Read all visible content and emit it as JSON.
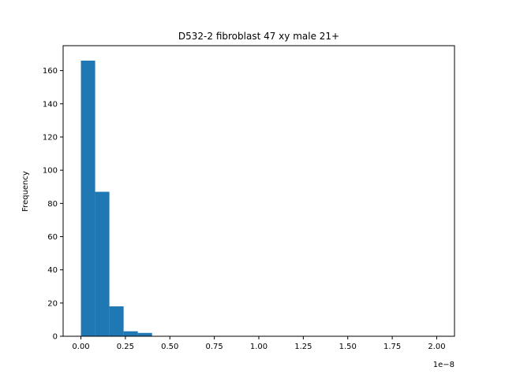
{
  "chart_data": {
    "type": "histogram",
    "title": "D532-2 fibroblast 47 xy male 21+",
    "xlabel": "",
    "ylabel": "Frequency",
    "x_offset_label": "1e−8",
    "xlim": [
      -0.1,
      2.1
    ],
    "ylim": [
      0,
      175
    ],
    "grid": false,
    "bar_color": "#1f77b4",
    "bin_width": 0.08,
    "bins": [
      {
        "x0": 0.0,
        "value": 166
      },
      {
        "x0": 0.08,
        "value": 87
      },
      {
        "x0": 0.16,
        "value": 18
      },
      {
        "x0": 0.24,
        "value": 3
      },
      {
        "x0": 0.32,
        "value": 2
      },
      {
        "x0": 0.4,
        "value": 0
      },
      {
        "x0": 0.48,
        "value": 0
      },
      {
        "x0": 0.56,
        "value": 0
      },
      {
        "x0": 0.64,
        "value": 0
      },
      {
        "x0": 0.72,
        "value": 0
      },
      {
        "x0": 0.8,
        "value": 0
      },
      {
        "x0": 0.88,
        "value": 0
      },
      {
        "x0": 0.96,
        "value": 0
      },
      {
        "x0": 1.04,
        "value": 0
      },
      {
        "x0": 1.12,
        "value": 0
      },
      {
        "x0": 1.2,
        "value": 0
      },
      {
        "x0": 1.28,
        "value": 0
      },
      {
        "x0": 1.36,
        "value": 0
      },
      {
        "x0": 1.44,
        "value": 0
      },
      {
        "x0": 1.52,
        "value": 0
      },
      {
        "x0": 1.6,
        "value": 0
      },
      {
        "x0": 1.68,
        "value": 0
      },
      {
        "x0": 1.76,
        "value": 0
      },
      {
        "x0": 1.84,
        "value": 0
      },
      {
        "x0": 1.92,
        "value": 0
      }
    ],
    "x_ticks": [
      {
        "value": 0.0,
        "label": "0.00"
      },
      {
        "value": 0.25,
        "label": "0.25"
      },
      {
        "value": 0.5,
        "label": "0.50"
      },
      {
        "value": 0.75,
        "label": "0.75"
      },
      {
        "value": 1.0,
        "label": "1.00"
      },
      {
        "value": 1.25,
        "label": "1.25"
      },
      {
        "value": 1.5,
        "label": "1.50"
      },
      {
        "value": 1.75,
        "label": "1.75"
      },
      {
        "value": 2.0,
        "label": "2.00"
      }
    ],
    "y_ticks": [
      {
        "value": 0,
        "label": "0"
      },
      {
        "value": 20,
        "label": "20"
      },
      {
        "value": 40,
        "label": "40"
      },
      {
        "value": 60,
        "label": "60"
      },
      {
        "value": 80,
        "label": "80"
      },
      {
        "value": 100,
        "label": "100"
      },
      {
        "value": 120,
        "label": "120"
      },
      {
        "value": 140,
        "label": "140"
      },
      {
        "value": 160,
        "label": "160"
      }
    ]
  }
}
